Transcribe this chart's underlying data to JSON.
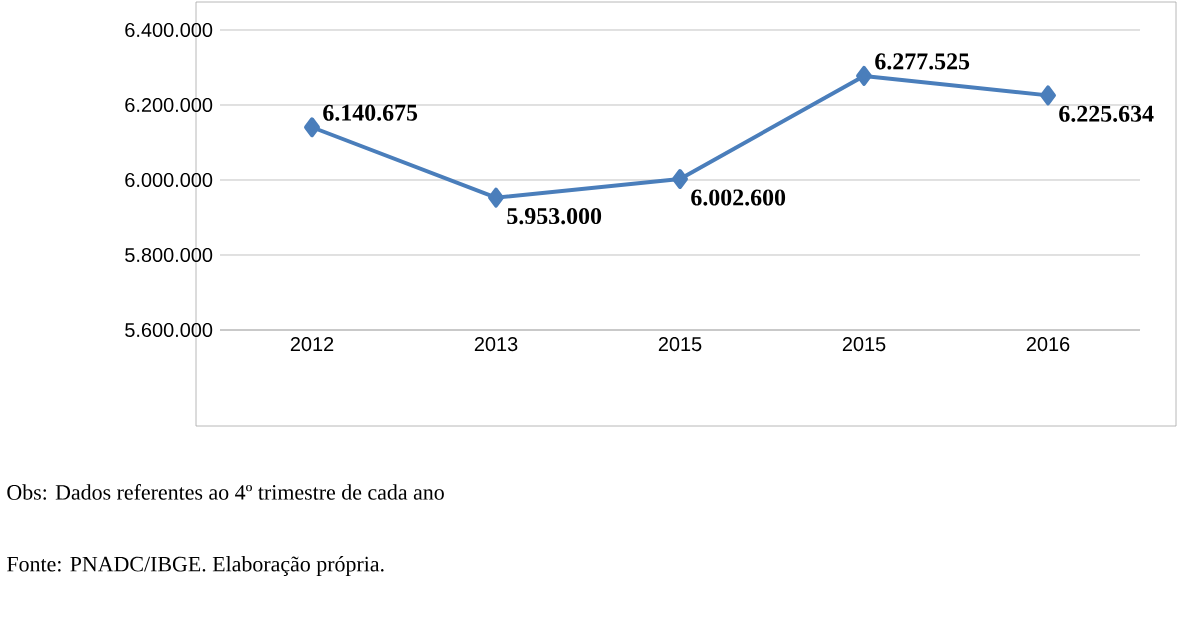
{
  "chart_data": {
    "type": "line",
    "categories": [
      "2012",
      "2013",
      "2015",
      "2015",
      "2016"
    ],
    "series": [
      {
        "color": "#4a7ebb",
        "values": [
          6140675,
          5953000,
          6002600,
          6277525,
          6225634
        ],
        "value_labels": [
          "6.140.675",
          "5.953.000",
          "6.002.600",
          "6.277.525",
          "6.225.634"
        ]
      }
    ],
    "ylim": [
      5600000,
      6400000
    ],
    "yticks": [
      {
        "value": 5600000,
        "label": "5.600.000"
      },
      {
        "value": 5800000,
        "label": "5.800.000"
      },
      {
        "value": 6000000,
        "label": "6.000.000"
      },
      {
        "value": 6200000,
        "label": "6.200.000"
      },
      {
        "value": 6400000,
        "label": "6.400.000"
      }
    ],
    "grid": "y",
    "marker": "diamond",
    "line_style": "solid",
    "annotations": [
      "Obs: Dados referentes ao  4º trimestre de cada ano",
      "Fonte: PNADC/IBGE.   Elaboração própria."
    ]
  }
}
